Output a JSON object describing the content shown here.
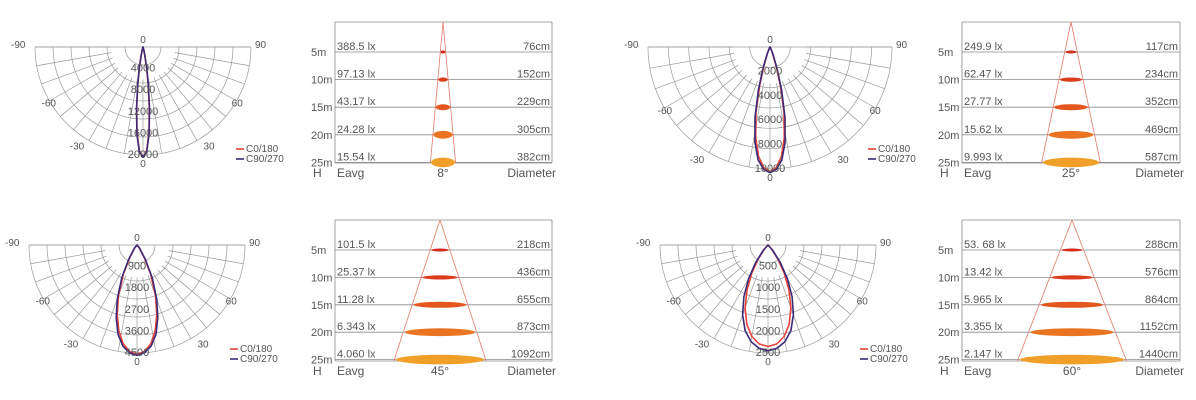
{
  "chart_data": [
    {
      "type": "polar",
      "beam": "8°",
      "angle_labels": [
        "-90",
        "90",
        "-60",
        "60",
        "-30",
        "30",
        "0",
        "0"
      ],
      "radial_ticks": [
        "4000",
        "8000",
        "12000",
        "16000",
        "20000"
      ],
      "legend": [
        {
          "name": "C0/180",
          "color": "#e8423a"
        },
        {
          "name": "C90/270",
          "color": "#3a2a78"
        }
      ],
      "series": [
        {
          "name": "C0/180",
          "values": [
            [
              0,
              20400
            ],
            [
              2,
              19200
            ],
            [
              4,
              15800
            ],
            [
              6,
              11000
            ],
            [
              8,
              6800
            ],
            [
              10,
              3600
            ],
            [
              12,
              1600
            ],
            [
              15,
              600
            ],
            [
              20,
              150
            ],
            [
              30,
              0
            ]
          ]
        },
        {
          "name": "C90/270",
          "values": [
            [
              0,
              20400
            ],
            [
              2,
              19400
            ],
            [
              4,
              16200
            ],
            [
              6,
              11500
            ],
            [
              8,
              7200
            ],
            [
              10,
              3900
            ],
            [
              12,
              1800
            ],
            [
              15,
              700
            ],
            [
              20,
              180
            ],
            [
              30,
              0
            ]
          ]
        }
      ]
    },
    {
      "type": "table",
      "h_label": "H",
      "e_label": "Eavg",
      "beam_label": "8°",
      "d_label": "Diameter",
      "rows": [
        {
          "h": "5m",
          "lux": "388.5 lx",
          "diameter": "76cm"
        },
        {
          "h": "10m",
          "lux": "97.13 lx",
          "diameter": "152cm"
        },
        {
          "h": "15m",
          "lux": "43.17 lx",
          "diameter": "229cm"
        },
        {
          "h": "20m",
          "lux": "24.28 lx",
          "diameter": "305cm"
        },
        {
          "h": "25m",
          "lux": "15.54 lx",
          "diameter": "382cm"
        }
      ]
    },
    {
      "type": "polar",
      "beam": "25°",
      "angle_labels": [
        "-90",
        "90",
        "-60",
        "60",
        "-30",
        "30",
        "0",
        "0"
      ],
      "radial_ticks": [
        "2000",
        "4000",
        "6000",
        "8000",
        "10000"
      ],
      "legend": [
        {
          "name": "C0/180",
          "color": "#e8423a"
        },
        {
          "name": "C90/270",
          "color": "#3a2a78"
        }
      ],
      "series": [
        {
          "name": "C0/180",
          "values": [
            [
              0,
              10200
            ],
            [
              3,
              9900
            ],
            [
              6,
              9000
            ],
            [
              9,
              7500
            ],
            [
              12,
              5500
            ],
            [
              15,
              3300
            ],
            [
              18,
              1600
            ],
            [
              22,
              500
            ],
            [
              28,
              80
            ],
            [
              35,
              0
            ]
          ]
        },
        {
          "name": "C90/270",
          "values": [
            [
              0,
              10300
            ],
            [
              3,
              10050
            ],
            [
              6,
              9300
            ],
            [
              9,
              7900
            ],
            [
              12,
              5900
            ],
            [
              15,
              3700
            ],
            [
              18,
              1900
            ],
            [
              22,
              650
            ],
            [
              28,
              120
            ],
            [
              35,
              0
            ]
          ]
        }
      ]
    },
    {
      "type": "table",
      "h_label": "H",
      "e_label": "Eavg",
      "beam_label": "25°",
      "d_label": "Diameter",
      "rows": [
        {
          "h": "5m",
          "lux": "249.9 lx",
          "diameter": "117cm"
        },
        {
          "h": "10m",
          "lux": "62.47 lx",
          "diameter": "234cm"
        },
        {
          "h": "15m",
          "lux": "27.77 lx",
          "diameter": "352cm"
        },
        {
          "h": "20m",
          "lux": "15.62 lx",
          "diameter": "469cm"
        },
        {
          "h": "25m",
          "lux": "9.993 lx",
          "diameter": "587cm"
        }
      ]
    },
    {
      "type": "polar",
      "beam": "45°",
      "angle_labels": [
        "-90",
        "90",
        "-60",
        "60",
        "-30",
        "30",
        "0",
        "0"
      ],
      "radial_ticks": [
        "900",
        "1800",
        "2700",
        "3600",
        "4500"
      ],
      "legend": [
        {
          "name": "C0/180",
          "color": "#e8423a"
        },
        {
          "name": "C90/270",
          "color": "#3a2a78"
        }
      ],
      "series": [
        {
          "name": "C0/180",
          "values": [
            [
              0,
              4550
            ],
            [
              4,
              4450
            ],
            [
              8,
              4150
            ],
            [
              12,
              3650
            ],
            [
              16,
              3000
            ],
            [
              20,
              2250
            ],
            [
              25,
              1350
            ],
            [
              30,
              600
            ],
            [
              38,
              150
            ],
            [
              45,
              0
            ]
          ]
        },
        {
          "name": "C90/270",
          "values": [
            [
              0,
              4600
            ],
            [
              4,
              4500
            ],
            [
              8,
              4250
            ],
            [
              12,
              3800
            ],
            [
              16,
              3150
            ],
            [
              20,
              2400
            ],
            [
              25,
              1500
            ],
            [
              30,
              700
            ],
            [
              38,
              180
            ],
            [
              45,
              0
            ]
          ]
        }
      ]
    },
    {
      "type": "table",
      "h_label": "H",
      "e_label": "Eavg",
      "beam_label": "45°",
      "d_label": "Diameter",
      "rows": [
        {
          "h": "5m",
          "lux": "101.5 lx",
          "diameter": "218cm"
        },
        {
          "h": "10m",
          "lux": "25.37 lx",
          "diameter": "436cm"
        },
        {
          "h": "15m",
          "lux": "11.28 lx",
          "diameter": "655cm"
        },
        {
          "h": "20m",
          "lux": "6.343 lx",
          "diameter": "873cm"
        },
        {
          "h": "25m",
          "lux": "4.060 lx",
          "diameter": "1092cm"
        }
      ]
    },
    {
      "type": "polar",
      "beam": "60°",
      "angle_labels": [
        "-90",
        "90",
        "-60",
        "60",
        "-30",
        "30",
        "0",
        "0"
      ],
      "radial_ticks": [
        "500",
        "1000",
        "1500",
        "2000",
        "2500"
      ],
      "legend": [
        {
          "name": "C0/180",
          "color": "#e8423a"
        },
        {
          "name": "C90/270",
          "color": "#3a2a78"
        }
      ],
      "series": [
        {
          "name": "C0/180",
          "values": [
            [
              0,
              2350
            ],
            [
              5,
              2300
            ],
            [
              10,
              2150
            ],
            [
              15,
              1900
            ],
            [
              20,
              1550
            ],
            [
              25,
              1150
            ],
            [
              30,
              750
            ],
            [
              35,
              400
            ],
            [
              42,
              120
            ],
            [
              50,
              0
            ]
          ]
        },
        {
          "name": "C90/270",
          "values": [
            [
              0,
              2450
            ],
            [
              5,
              2400
            ],
            [
              10,
              2270
            ],
            [
              15,
              2050
            ],
            [
              20,
              1720
            ],
            [
              25,
              1320
            ],
            [
              30,
              900
            ],
            [
              35,
              500
            ],
            [
              42,
              160
            ],
            [
              50,
              0
            ]
          ]
        }
      ]
    },
    {
      "type": "table",
      "h_label": "H",
      "e_label": "Eavg",
      "beam_label": "60°",
      "d_label": "Diameter",
      "rows": [
        {
          "h": "5m",
          "lux": "53. 68 lx",
          "diameter": "288cm"
        },
        {
          "h": "10m",
          "lux": "13.42 lx",
          "diameter": "576cm"
        },
        {
          "h": "15m",
          "lux": "5.965 lx",
          "diameter": "864cm"
        },
        {
          "h": "20m",
          "lux": "3.355 lx",
          "diameter": "1152cm"
        },
        {
          "h": "25m",
          "lux": "2.147 lx",
          "diameter": "1440cm"
        }
      ]
    }
  ],
  "colors": {
    "grid": "#9a9a9a",
    "c0": "#e8423a",
    "c90": "#3a2a78",
    "cone": "#e07a6a",
    "spot_near": "#d42a1e",
    "spot_far": "#f0a028",
    "table_line": "#8a8a8a"
  }
}
